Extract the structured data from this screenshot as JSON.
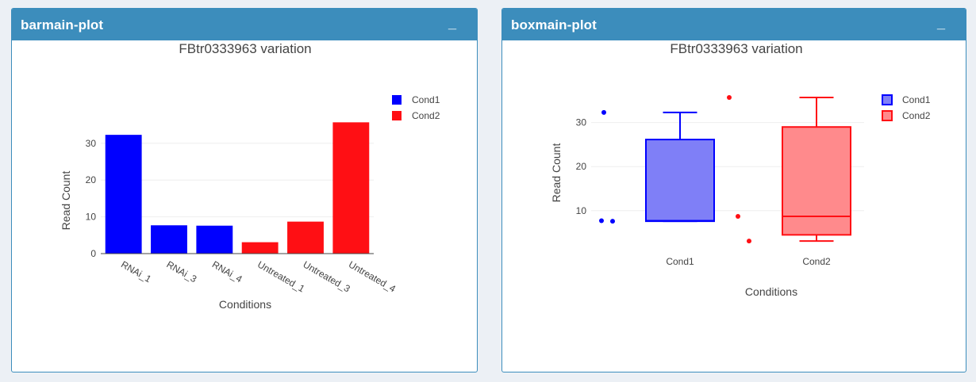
{
  "panels": {
    "bar": {
      "title": "barmain-plot",
      "collapse_label": "_"
    },
    "box": {
      "title": "boxmain-plot",
      "collapse_label": "_"
    }
  },
  "chart_data": [
    {
      "type": "bar",
      "title": "FBtr0333963 variation",
      "xlabel": "Conditions",
      "ylabel": "Read Count",
      "categories": [
        "RNAi_1",
        "RNAi_3",
        "RNAi_4",
        "Untreated_1",
        "Untreated_3",
        "Untreated_4"
      ],
      "values": [
        32.3,
        7.7,
        7.6,
        3.1,
        8.7,
        35.7
      ],
      "group": [
        "Cond1",
        "Cond1",
        "Cond1",
        "Cond2",
        "Cond2",
        "Cond2"
      ],
      "yticks": [
        0,
        10,
        20,
        30
      ],
      "ylim": [
        0,
        37.5
      ],
      "grid": true,
      "legend": [
        {
          "name": "Cond1",
          "color": "#0000ff"
        },
        {
          "name": "Cond2",
          "color": "#ff0f14"
        }
      ],
      "legend_position": "top-right"
    },
    {
      "type": "box",
      "title": "FBtr0333963 variation",
      "xlabel": "Conditions",
      "ylabel": "Read Count",
      "categories": [
        "Cond1",
        "Cond2"
      ],
      "series": [
        {
          "name": "Cond1",
          "color": "#0000ff",
          "fill": "#7f7ff7",
          "lowerfence": 7.6,
          "q1": 7.6,
          "median": 7.7,
          "q3": 26.15,
          "upperfence": 32.3,
          "points": [
            7.7,
            7.6,
            32.3
          ]
        },
        {
          "name": "Cond2",
          "color": "#ff0f14",
          "fill": "#ff8a8c",
          "lowerfence": 3.1,
          "q1": 4.5,
          "median": 8.7,
          "q3": 29.0,
          "upperfence": 35.7,
          "points": [
            8.7,
            3.1,
            35.7
          ]
        }
      ],
      "yticks": [
        10,
        20,
        30
      ],
      "ylim": [
        1.5,
        37.5
      ],
      "grid": true,
      "legend": [
        {
          "name": "Cond1",
          "color": "#0000ff"
        },
        {
          "name": "Cond2",
          "color": "#ff0f14"
        }
      ],
      "legend_position": "top-right"
    }
  ]
}
